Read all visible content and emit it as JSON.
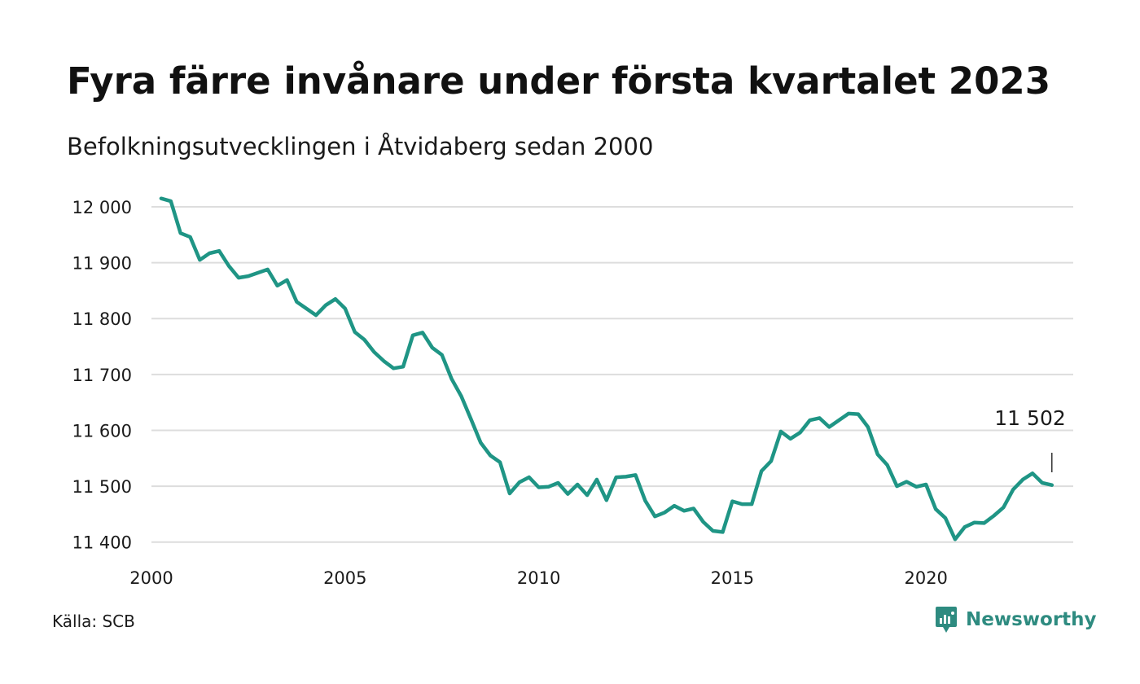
{
  "title": "Fyra färre invånare under första kvartalet 2023",
  "subtitle": "Befolkningsutvecklingen i Åtvidaberg sedan 2000",
  "source": "Källa: SCB",
  "brand": {
    "name": "Newsworthy",
    "icon": "newsworthy-logo-icon",
    "color": "#2e8b80"
  },
  "colors": {
    "line": "#1f9585",
    "grid": "#dddddd",
    "text": "#1a1a1a"
  },
  "chart_data": {
    "type": "line",
    "title": "Fyra färre invånare under första kvartalet 2023",
    "subtitle": "Befolkningsutvecklingen i Åtvidaberg sedan 2000",
    "xlabel": "",
    "ylabel": "",
    "xlim": [
      2000,
      2024.5
    ],
    "ylim": [
      11380,
      12000
    ],
    "grid": true,
    "legend": "none",
    "x_ticks": [
      {
        "value": 2000,
        "label": "2000"
      },
      {
        "value": 2005,
        "label": "2005"
      },
      {
        "value": 2010,
        "label": "2010"
      },
      {
        "value": 2015,
        "label": "2015"
      },
      {
        "value": 2020,
        "label": "2020"
      }
    ],
    "y_ticks": [
      {
        "value": 12000,
        "label": "12 000"
      },
      {
        "value": 11900,
        "label": "11 900"
      },
      {
        "value": 11800,
        "label": "11 800"
      },
      {
        "value": 11700,
        "label": "11 700"
      },
      {
        "value": 11600,
        "label": "11 600"
      },
      {
        "value": 11500,
        "label": "11 500"
      },
      {
        "value": 11400,
        "label": "11 400"
      }
    ],
    "annotation": {
      "x": 2023.25,
      "y": 11502,
      "label": "11 502"
    },
    "series": [
      {
        "x": [
          2000.25,
          2000.5,
          2000.75,
          2001,
          2001.25,
          2001.5,
          2001.75,
          2002,
          2002.25,
          2002.5,
          2002.75,
          2003,
          2003.25,
          2003.5,
          2003.75,
          2004,
          2004.25,
          2004.5,
          2004.75,
          2005,
          2005.25,
          2005.5,
          2005.75,
          2006,
          2006.25,
          2006.5,
          2006.75,
          2007,
          2007.25,
          2007.5,
          2007.75,
          2008,
          2008.25,
          2008.5,
          2008.75,
          2009,
          2009.25,
          2009.5,
          2009.75,
          2010,
          2010.25,
          2010.5,
          2010.75,
          2011,
          2011.25,
          2011.5,
          2011.75,
          2012,
          2012.25,
          2012.5,
          2012.75,
          2013,
          2013.25,
          2013.5,
          2013.75,
          2014,
          2014.25,
          2014.5,
          2014.75,
          2015,
          2015.25,
          2015.5,
          2015.75,
          2016,
          2016.25,
          2016.5,
          2016.75,
          2017,
          2017.25,
          2017.5,
          2017.75,
          2018,
          2018.25,
          2018.5,
          2018.75,
          2019,
          2019.25,
          2019.5,
          2019.75,
          2020,
          2020.25,
          2020.5,
          2020.75,
          2021,
          2021.25,
          2021.5,
          2021.75,
          2022,
          2022.25,
          2022.5,
          2022.75,
          2023,
          2023.25
        ],
        "y": [
          12015,
          12010,
          11953,
          11946,
          11905,
          11917,
          11921,
          11894,
          11873,
          11876,
          11882,
          11888,
          11859,
          11869,
          11830,
          11818,
          11806,
          11824,
          11835,
          11818,
          11776,
          11762,
          11740,
          11724,
          11711,
          11714,
          11770,
          11775,
          11748,
          11735,
          11692,
          11661,
          11620,
          11578,
          11555,
          11543,
          11487,
          11507,
          11516,
          11498,
          11499,
          11506,
          11486,
          11503,
          11484,
          11512,
          11475,
          11516,
          11517,
          11520,
          11474,
          11446,
          11453,
          11465,
          11456,
          11460,
          11436,
          11420,
          11418,
          11473,
          11468,
          11468,
          11527,
          11545,
          11598,
          11585,
          11596,
          11618,
          11622,
          11606,
          11618,
          11630,
          11629,
          11606,
          11557,
          11538,
          11500,
          11508,
          11499,
          11503,
          11459,
          11443,
          11405,
          11427,
          11435,
          11434,
          11447,
          11462,
          11494,
          11512,
          11523,
          11506,
          11502
        ]
      }
    ]
  }
}
